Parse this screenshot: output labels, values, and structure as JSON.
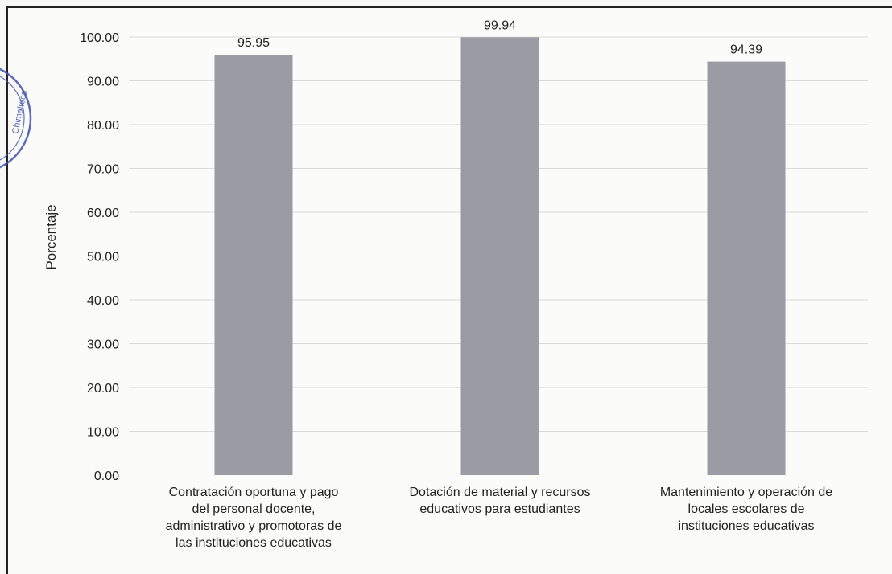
{
  "chart_data": {
    "type": "bar",
    "categories": [
      [
        "Contratación oportuna y pago",
        "del personal docente,",
        "administrativo y promotoras de",
        "las instituciones educativas"
      ],
      [
        "Dotación de material y recursos",
        "educativos para estudiantes"
      ],
      [
        "Mantenimiento y operación de",
        "locales escolares de",
        "instituciones educativas"
      ]
    ],
    "values": [
      95.95,
      99.94,
      94.39
    ],
    "value_labels": [
      "95.95",
      "99.94",
      "94.39"
    ],
    "ylabel": "Porcentaje",
    "ylim": [
      0,
      100
    ],
    "yticks": [
      "0.00",
      "10.00",
      "20.00",
      "30.00",
      "40.00",
      "50.00",
      "60.00",
      "70.00",
      "80.00",
      "90.00",
      "100.00"
    ],
    "grid": true,
    "legend": "none",
    "colors": {
      "bar": "#9b9ba3",
      "grid": "#d9d9d9",
      "text": "#222222",
      "seal": "#3d4fb0"
    }
  },
  "seal": {
    "text": "Chimalteca"
  }
}
